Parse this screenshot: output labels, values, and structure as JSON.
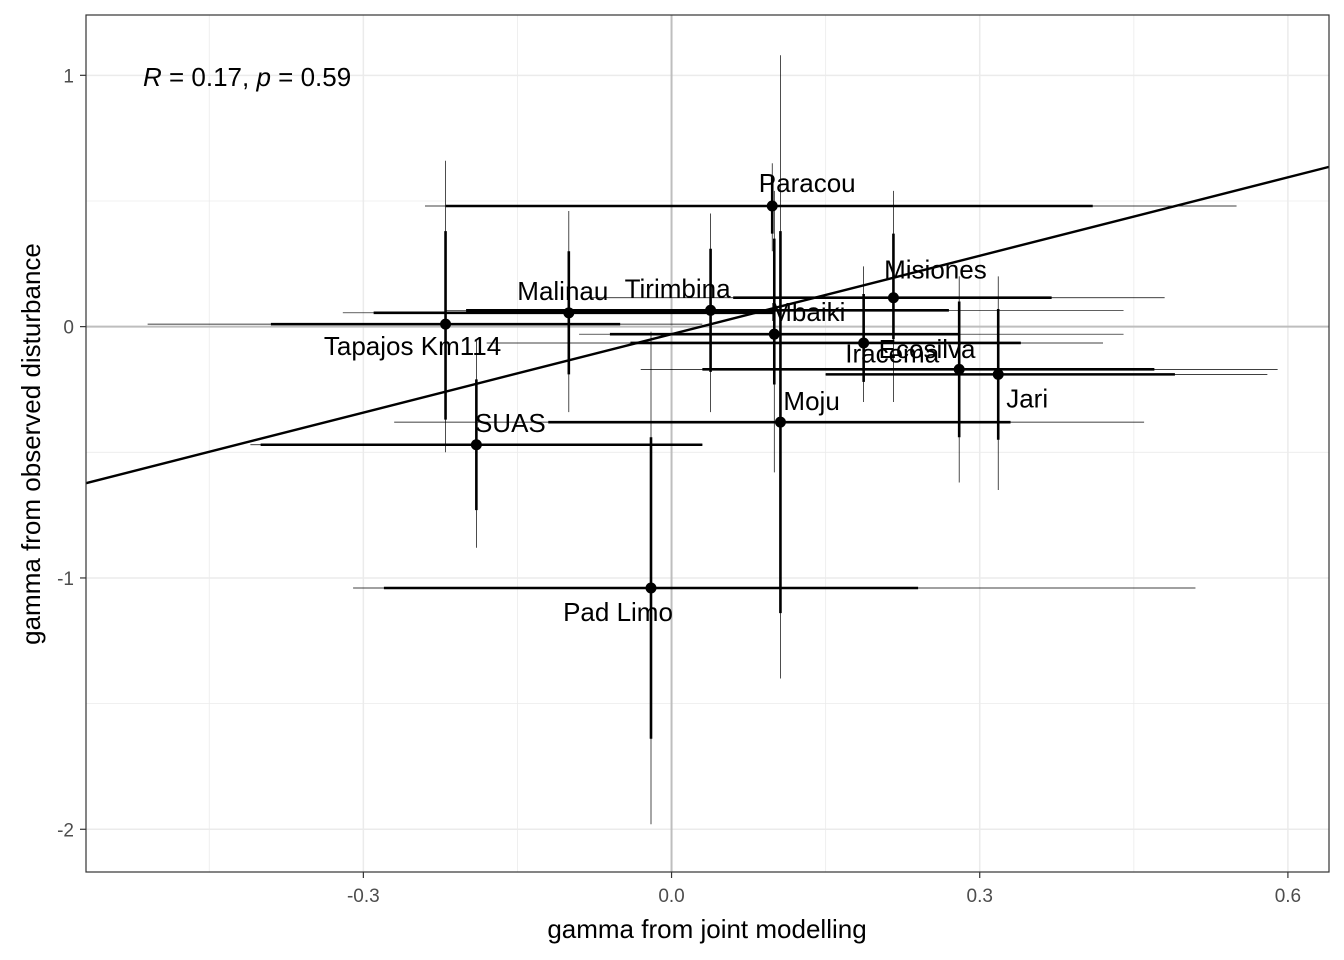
{
  "chart_data": {
    "type": "scatter",
    "xlabel": "gamma from joint modelling",
    "ylabel": "gamma from observed disturbance",
    "xlim": [
      -0.57,
      0.64
    ],
    "ylim": [
      -2.17,
      1.24
    ],
    "xticks": [
      -0.3,
      0.0,
      0.3,
      0.6
    ],
    "xtick_labels": [
      "-0.3",
      "0.0",
      "0.3",
      "0.6"
    ],
    "yticks": [
      -2,
      -1,
      0,
      1
    ],
    "ytick_labels": [
      "-2",
      "-1",
      "0",
      "1"
    ],
    "grid": true,
    "reference_lines": {
      "x": 0,
      "y": 0
    },
    "annotation": {
      "r_sym": "R",
      "r_val": " = 0.17, ",
      "p_sym": "p",
      "p_val": " = 0.59"
    },
    "regression_line": {
      "intercept": -0.03,
      "slope": 1.04
    },
    "points": [
      {
        "label": "Paracou",
        "x": 0.098,
        "y": 0.48,
        "x_inner": [
          -0.22,
          0.41
        ],
        "x_outer": [
          -0.24,
          0.55
        ],
        "y_inner": [
          0.37,
          0.6
        ],
        "y_outer": [
          0.3,
          0.65
        ]
      },
      {
        "label": "Misiones",
        "x": 0.216,
        "y": 0.115,
        "x_inner": [
          0.06,
          0.37
        ],
        "x_outer": [
          -0.08,
          0.48
        ],
        "y_inner": [
          -0.05,
          0.37
        ],
        "y_outer": [
          -0.3,
          0.54
        ]
      },
      {
        "label": "Malinau",
        "x": -0.1,
        "y": 0.055,
        "x_inner": [
          -0.29,
          0.1
        ],
        "x_outer": [
          -0.32,
          0.1
        ],
        "y_inner": [
          -0.19,
          0.3
        ],
        "y_outer": [
          -0.34,
          0.46
        ]
      },
      {
        "label": "Tirimbina",
        "x": 0.038,
        "y": 0.065,
        "x_inner": [
          -0.2,
          0.27
        ],
        "x_outer": [
          -0.22,
          0.44
        ],
        "y_inner": [
          -0.18,
          0.31
        ],
        "y_outer": [
          -0.34,
          0.45
        ]
      },
      {
        "label": "Mbaiki",
        "x": 0.1,
        "y": -0.03,
        "x_inner": [
          -0.06,
          0.28
        ],
        "x_outer": [
          -0.09,
          0.44
        ],
        "y_inner": [
          -0.23,
          0.35
        ],
        "y_outer": [
          -0.58,
          0.54
        ]
      },
      {
        "label": "Tapajos Km114",
        "x": -0.22,
        "y": 0.01,
        "x_inner": [
          -0.39,
          -0.05
        ],
        "x_outer": [
          -0.51,
          0.03
        ],
        "y_inner": [
          -0.37,
          0.38
        ],
        "y_outer": [
          -0.5,
          0.66
        ]
      },
      {
        "label": "Ecosilva",
        "x": 0.187,
        "y": -0.065,
        "x_inner": [
          -0.04,
          0.34
        ],
        "x_outer": [
          -0.18,
          0.42
        ],
        "y_inner": [
          -0.22,
          0.13
        ],
        "y_outer": [
          -0.3,
          0.24
        ]
      },
      {
        "label": "Iracema",
        "x": 0.28,
        "y": -0.17,
        "x_inner": [
          0.03,
          0.47
        ],
        "x_outer": [
          -0.03,
          0.59
        ],
        "y_inner": [
          -0.44,
          0.1
        ],
        "y_outer": [
          -0.62,
          0.2
        ]
      },
      {
        "label": "Jari",
        "x": 0.318,
        "y": -0.19,
        "x_inner": [
          0.15,
          0.49
        ],
        "x_outer": [
          0.15,
          0.58
        ],
        "y_inner": [
          -0.45,
          0.07
        ],
        "y_outer": [
          -0.65,
          0.2
        ]
      },
      {
        "label": "Moju",
        "x": 0.106,
        "y": -0.38,
        "x_inner": [
          -0.12,
          0.33
        ],
        "x_outer": [
          -0.27,
          0.46
        ],
        "y_inner": [
          -1.14,
          0.38
        ],
        "y_outer": [
          -1.4,
          1.08
        ]
      },
      {
        "label": "SUAS",
        "x": -0.19,
        "y": -0.47,
        "x_inner": [
          -0.4,
          0.03
        ],
        "x_outer": [
          -0.41,
          0.03
        ],
        "y_inner": [
          -0.73,
          -0.21
        ],
        "y_outer": [
          -0.88,
          -0.05
        ]
      },
      {
        "label": "Pad Limo",
        "x": -0.02,
        "y": -1.04,
        "x_inner": [
          -0.28,
          0.24
        ],
        "x_outer": [
          -0.31,
          0.51
        ],
        "y_inner": [
          -1.64,
          -0.44
        ],
        "y_outer": [
          -1.98,
          -0.02
        ]
      }
    ]
  }
}
